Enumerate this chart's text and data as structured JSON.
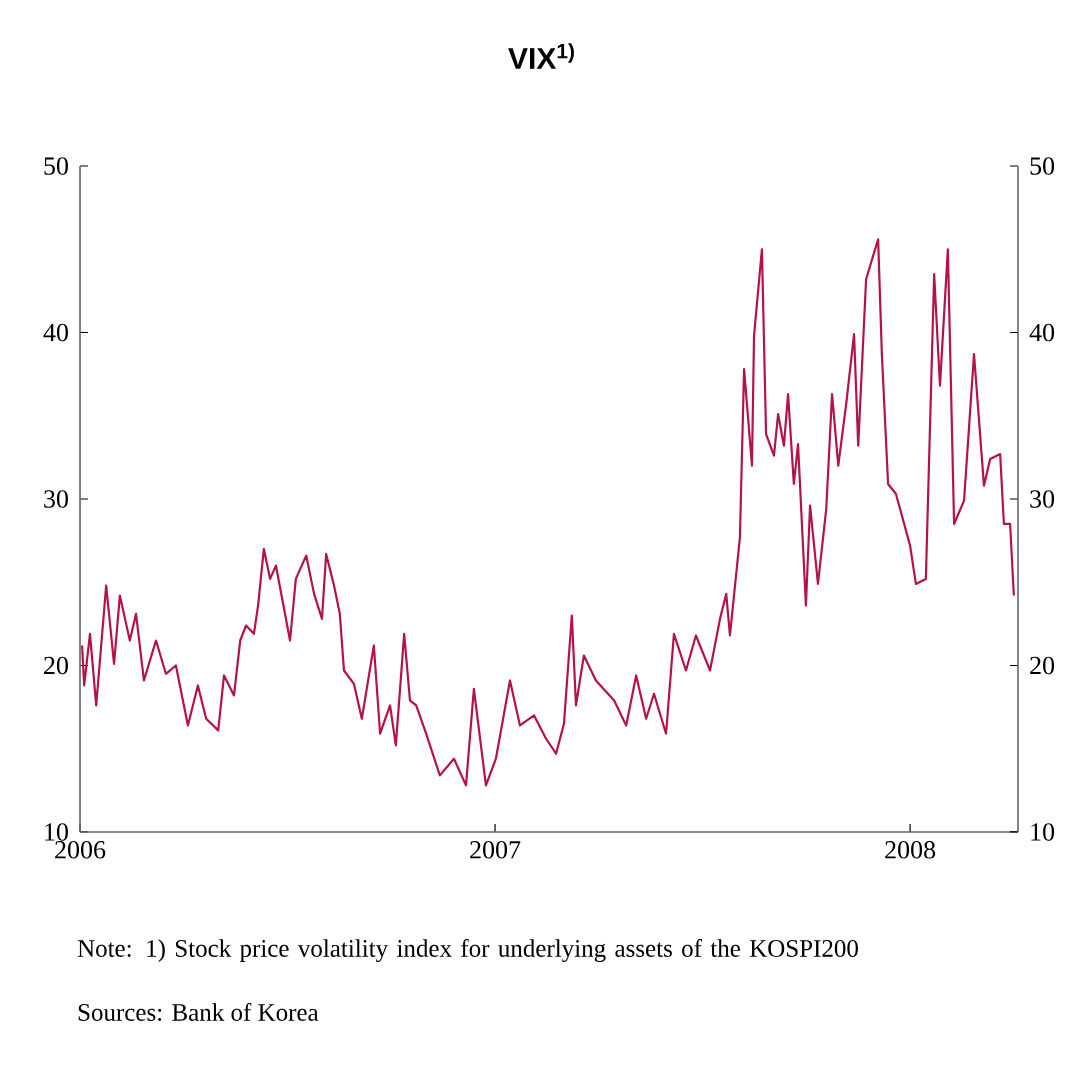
{
  "chart_data": {
    "type": "line",
    "title": "VIX$^{1)}$",
    "x": [
      2006.005,
      2006.01,
      2006.024,
      2006.039,
      2006.063,
      2006.082,
      2006.096,
      2006.12,
      2006.135,
      2006.154,
      2006.183,
      2006.207,
      2006.231,
      2006.26,
      2006.284,
      2006.304,
      2006.333,
      2006.347,
      2006.371,
      2006.386,
      2006.4,
      2006.419,
      2006.429,
      2006.443,
      2006.458,
      2006.472,
      2006.506,
      2006.52,
      2006.545,
      2006.564,
      2006.583,
      2006.593,
      2006.612,
      2006.626,
      2006.636,
      2006.66,
      2006.679,
      2006.708,
      2006.723,
      2006.747,
      2006.761,
      2006.781,
      2006.795,
      2006.81,
      2006.834,
      2006.867,
      2006.901,
      2006.93,
      2006.949,
      2006.978,
      2007.002,
      2007.036,
      2007.06,
      2007.094,
      2007.123,
      2007.147,
      2007.166,
      2007.185,
      2007.195,
      2007.214,
      2007.243,
      2007.287,
      2007.316,
      2007.34,
      2007.364,
      2007.383,
      2007.412,
      2007.431,
      2007.46,
      2007.484,
      2007.518,
      2007.542,
      2007.557,
      2007.566,
      2007.59,
      2007.6,
      2007.619,
      2007.624,
      2007.643,
      2007.653,
      2007.672,
      2007.682,
      2007.696,
      2007.706,
      2007.72,
      2007.73,
      2007.749,
      2007.759,
      2007.778,
      2007.798,
      2007.812,
      2007.827,
      2007.846,
      2007.865,
      2007.875,
      2007.894,
      2007.923,
      2007.932,
      2007.947,
      2007.966,
      2008.0,
      2008.014,
      2008.038,
      2008.058,
      2008.072,
      2008.091,
      2008.106,
      2008.13,
      2008.154,
      2008.178,
      2008.193,
      2008.217,
      2008.226,
      2008.241,
      2008.25
    ],
    "series": [
      {
        "color": "#b5124a",
        "values": [
          21.2,
          18.8,
          21.9,
          17.6,
          24.8,
          20.1,
          24.2,
          21.5,
          23.1,
          19.1,
          21.5,
          19.5,
          20.0,
          16.4,
          18.8,
          16.8,
          16.1,
          19.4,
          18.2,
          21.5,
          22.4,
          21.9,
          23.6,
          27.0,
          25.2,
          26.0,
          21.5,
          25.2,
          26.6,
          24.3,
          22.8,
          26.7,
          24.8,
          23.1,
          19.7,
          18.9,
          16.8,
          21.2,
          15.9,
          17.6,
          15.2,
          21.9,
          17.9,
          17.6,
          15.9,
          13.4,
          14.4,
          12.8,
          18.6,
          12.8,
          14.4,
          19.1,
          16.4,
          17.0,
          15.6,
          14.7,
          16.5,
          23.0,
          17.6,
          20.6,
          19.1,
          17.9,
          16.4,
          19.4,
          16.8,
          18.3,
          15.9,
          21.9,
          19.7,
          21.8,
          19.7,
          22.8,
          24.3,
          21.8,
          27.7,
          37.8,
          32.0,
          39.8,
          45.0,
          33.9,
          32.6,
          35.1,
          33.2,
          36.3,
          30.9,
          33.3,
          23.6,
          29.6,
          24.9,
          29.4,
          36.3,
          32.0,
          35.7,
          39.9,
          33.2,
          43.2,
          45.6,
          38.7,
          30.9,
          30.3,
          27.2,
          24.9,
          25.2,
          43.5,
          36.8,
          45.0,
          28.5,
          29.9,
          38.7,
          30.8,
          32.4,
          32.7,
          28.5,
          28.5,
          24.2
        ]
      }
    ],
    "xlim": [
      2006,
      2008.26
    ],
    "xticks": [
      2006,
      2007,
      2008
    ],
    "ylim": [
      10,
      50
    ],
    "yticks": [
      10,
      20,
      30,
      40,
      50
    ],
    "y2lim": [
      10,
      50
    ],
    "y2ticks": [
      10,
      20,
      30,
      40,
      50
    ],
    "line_style": "solid",
    "annotations": [
      "Note: 1) Stock price volatility index for underlying assets of the KOSPI200",
      "Sources: Bank of Korea"
    ]
  }
}
